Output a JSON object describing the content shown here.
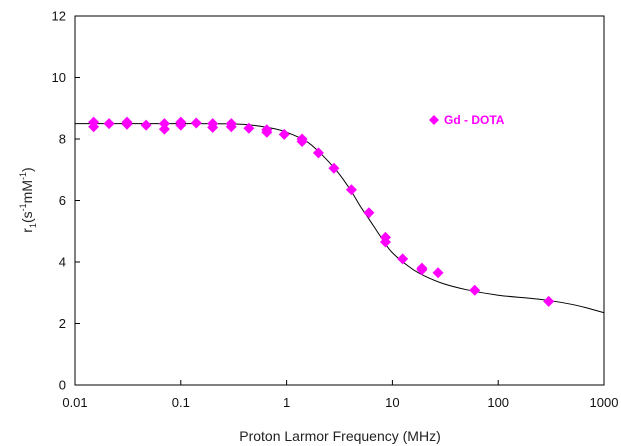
{
  "chart_data": {
    "type": "scatter",
    "xlabel": "Proton Larmor Frequency (MHz)",
    "ylabel": {
      "base": "r",
      "sub": "1",
      "open": "(s",
      "sup1": "-1",
      "mid": "mM",
      "sup2": "-1",
      "close": ")"
    },
    "xscale": "log",
    "xlim": [
      0.01,
      1000
    ],
    "ylim": [
      0,
      12
    ],
    "xticks": [
      {
        "value": 0.01,
        "label": "0.01"
      },
      {
        "value": 0.1,
        "label": "0.1"
      },
      {
        "value": 1,
        "label": "1"
      },
      {
        "value": 10,
        "label": "10"
      },
      {
        "value": 100,
        "label": "100"
      },
      {
        "value": 1000,
        "label": "1000"
      }
    ],
    "yticks": [
      {
        "value": 0,
        "label": "0"
      },
      {
        "value": 2,
        "label": "2"
      },
      {
        "value": 4,
        "label": "4"
      },
      {
        "value": 6,
        "label": "6"
      },
      {
        "value": 8,
        "label": "8"
      },
      {
        "value": 10,
        "label": "10"
      },
      {
        "value": 12,
        "label": "12"
      }
    ],
    "grid": false,
    "legend_position": "top-right",
    "series": [
      {
        "name": "Gd - DOTA",
        "marker": "diamond",
        "color": "#ff00ff",
        "points": [
          [
            0.015,
            8.55
          ],
          [
            0.015,
            8.4
          ],
          [
            0.021,
            8.5
          ],
          [
            0.031,
            8.55
          ],
          [
            0.031,
            8.48
          ],
          [
            0.047,
            8.45
          ],
          [
            0.07,
            8.5
          ],
          [
            0.07,
            8.32
          ],
          [
            0.1,
            8.55
          ],
          [
            0.1,
            8.45
          ],
          [
            0.14,
            8.52
          ],
          [
            0.2,
            8.5
          ],
          [
            0.2,
            8.38
          ],
          [
            0.3,
            8.5
          ],
          [
            0.3,
            8.4
          ],
          [
            0.44,
            8.35
          ],
          [
            0.65,
            8.3
          ],
          [
            0.65,
            8.22
          ],
          [
            0.95,
            8.15
          ],
          [
            1.4,
            8.0
          ],
          [
            1.4,
            7.92
          ],
          [
            2.0,
            7.55
          ],
          [
            2.8,
            7.05
          ],
          [
            4.1,
            6.35
          ],
          [
            6.0,
            5.6
          ],
          [
            8.6,
            4.8
          ],
          [
            8.6,
            4.65
          ],
          [
            12.5,
            4.1
          ],
          [
            19,
            3.8
          ],
          [
            19,
            3.75
          ],
          [
            27,
            3.65
          ],
          [
            60,
            3.08
          ],
          [
            300,
            2.72
          ]
        ]
      },
      {
        "type": "line",
        "color": "#000000",
        "points": [
          [
            0.01,
            8.5
          ],
          [
            0.1,
            8.5
          ],
          [
            0.3,
            8.49
          ],
          [
            0.5,
            8.44
          ],
          [
            0.8,
            8.32
          ],
          [
            1.0,
            8.22
          ],
          [
            1.5,
            7.95
          ],
          [
            2.0,
            7.6
          ],
          [
            3.0,
            6.95
          ],
          [
            4.0,
            6.35
          ],
          [
            5.0,
            5.8
          ],
          [
            6.0,
            5.4
          ],
          [
            8.0,
            4.75
          ],
          [
            10,
            4.3
          ],
          [
            15,
            3.8
          ],
          [
            20,
            3.55
          ],
          [
            30,
            3.3
          ],
          [
            50,
            3.1
          ],
          [
            100,
            2.92
          ],
          [
            200,
            2.82
          ],
          [
            300,
            2.75
          ],
          [
            500,
            2.62
          ],
          [
            700,
            2.5
          ],
          [
            1000,
            2.35
          ]
        ]
      }
    ]
  }
}
